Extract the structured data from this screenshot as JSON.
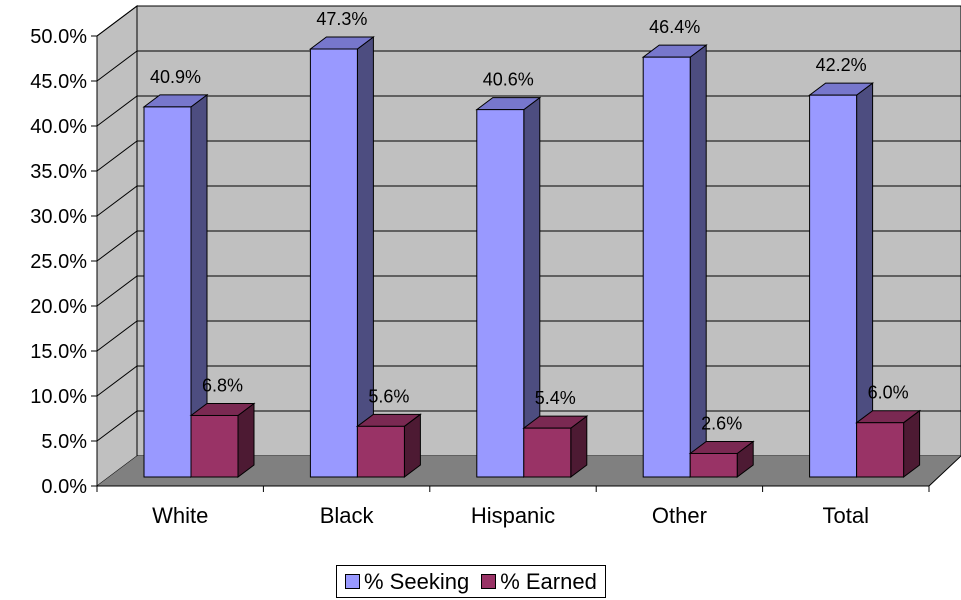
{
  "chart_data": {
    "type": "bar",
    "categories": [
      "White",
      "Black",
      "Hispanic",
      "Other",
      "Total"
    ],
    "series": [
      {
        "name": "% Seeking",
        "values": [
          40.9,
          47.3,
          40.6,
          46.4,
          42.2
        ],
        "labels": [
          "40.9%",
          "47.3%",
          "40.6%",
          "46.4%",
          "42.2%"
        ]
      },
      {
        "name": "% Earned",
        "values": [
          6.8,
          5.6,
          5.4,
          2.6,
          6.0
        ],
        "labels": [
          "6.8%",
          "5.6%",
          "5.4%",
          "2.6%",
          "6.0%"
        ]
      }
    ],
    "yticks": [
      "0.0%",
      "5.0%",
      "10.0%",
      "15.0%",
      "20.0%",
      "25.0%",
      "30.0%",
      "35.0%",
      "40.0%",
      "45.0%",
      "50.0%"
    ],
    "ylim": [
      0,
      50
    ],
    "grid": true,
    "three_d": true,
    "legend_position": "bottom",
    "colors": {
      "seeking_front": "#9999ff",
      "seeking_side": "#4d4d80",
      "seeking_top": "#7777cc",
      "earned_front": "#993366",
      "earned_side": "#4d1a33",
      "earned_top": "#7a2952",
      "wall": "#c0c0c0",
      "floor": "#808080"
    }
  }
}
